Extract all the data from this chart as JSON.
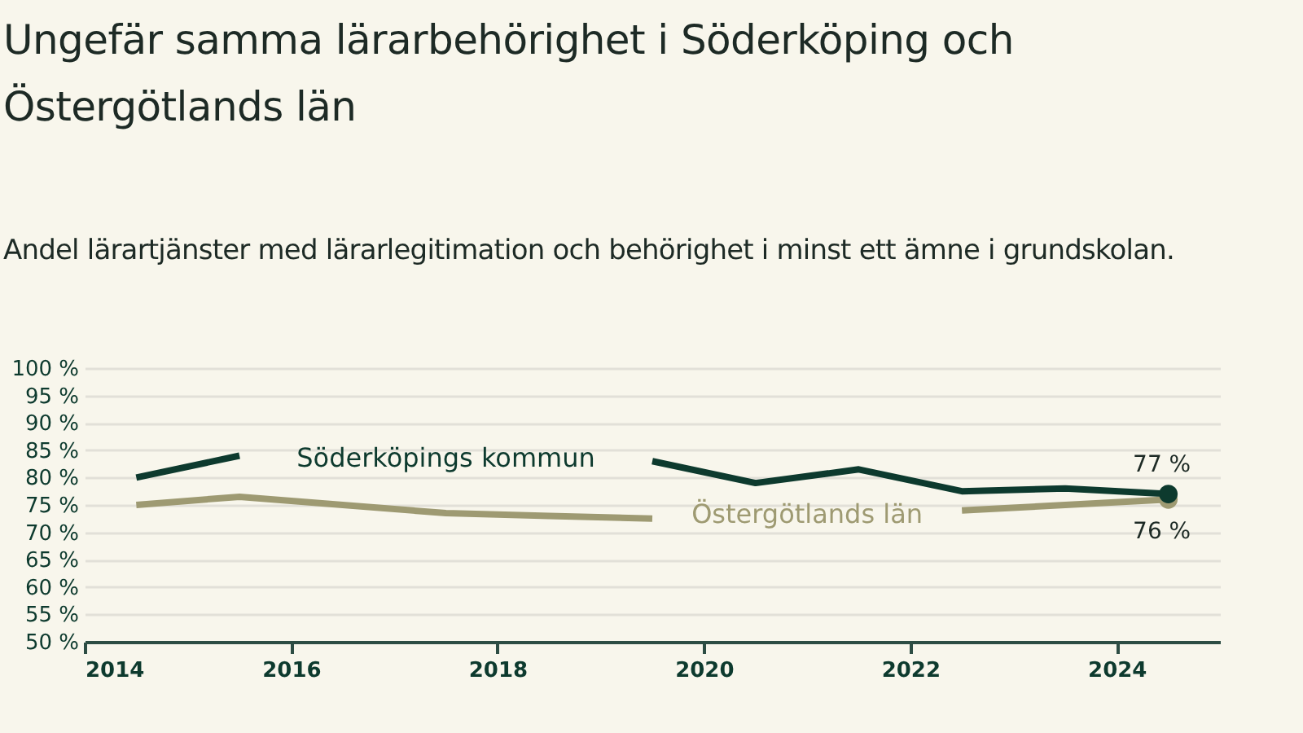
{
  "chart_data": {
    "type": "line",
    "title": "Ungefär samma lärarbehörighet i Söderköping och Östergötlands län",
    "subtitle": "Andel lärartjänster med lärarlegitimation och behörighet i minst ett ämne i grundskolan.",
    "x": [
      2014.5,
      2015.5,
      2016.5,
      2017.5,
      2018.5,
      2019.5,
      2020.5,
      2021.5,
      2022.5,
      2023.5,
      2024.5
    ],
    "series": [
      {
        "name": "Söderköpings kommun",
        "color": "#0d3a2e",
        "values": [
          80,
          84,
          null,
          null,
          null,
          83,
          79,
          81.5,
          77.5,
          78,
          77
        ],
        "value_labels": [
          null,
          null,
          null,
          null,
          null,
          null,
          null,
          null,
          null,
          null,
          "77 %"
        ]
      },
      {
        "name": "Östergötlands län",
        "color": "#9e9a72",
        "values": [
          75,
          76.5,
          75,
          73.5,
          73,
          72.5,
          null,
          null,
          74,
          75,
          76
        ],
        "value_labels": [
          null,
          null,
          null,
          null,
          null,
          null,
          null,
          null,
          null,
          null,
          "76 %"
        ]
      }
    ],
    "xlim": [
      2014,
      2025
    ],
    "xticks": [
      2014,
      2016,
      2018,
      2020,
      2022,
      2024
    ],
    "ylim": [
      50,
      100
    ],
    "yticks": [
      {
        "value": 50,
        "label": "50 %"
      },
      {
        "value": 55,
        "label": "55 %"
      },
      {
        "value": 60,
        "label": "60 %"
      },
      {
        "value": 65,
        "label": "65 %"
      },
      {
        "value": 70,
        "label": "70 %"
      },
      {
        "value": 75,
        "label": "75 %"
      },
      {
        "value": 80,
        "label": "80 %"
      },
      {
        "value": 85,
        "label": "85 %"
      },
      {
        "value": 90,
        "label": "90 %"
      },
      {
        "value": 95,
        "label": "95 %"
      },
      {
        "value": 100,
        "label": "100 %"
      }
    ],
    "grid": "y",
    "legend": false,
    "line_style": "solid"
  }
}
